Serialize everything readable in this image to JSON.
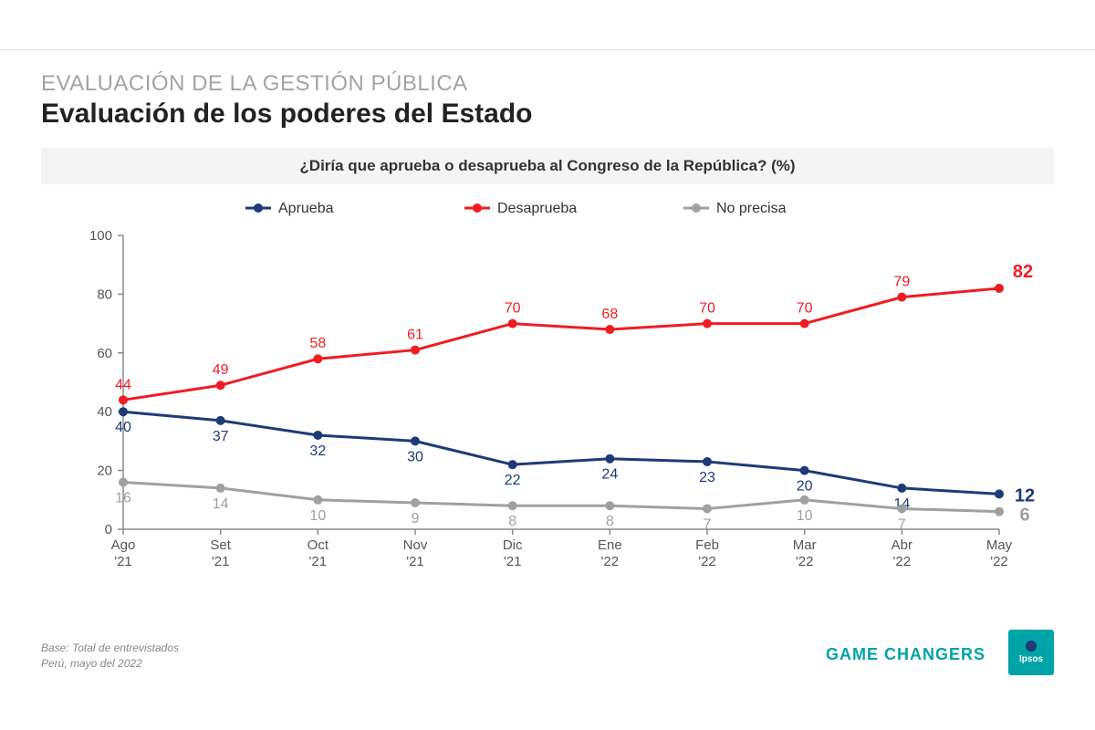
{
  "supertitle": "EVALUACIÓN DE LA GESTIÓN PÚBLICA",
  "title": "Evaluación de los poderes del Estado",
  "question": "¿Diría que aprueba o desaprueba al Congreso de la República? (%)",
  "footer_line1": "Base: Total de entrevistados",
  "footer_line2": "Perú, mayo del 2022",
  "tagline": "GAME CHANGERS",
  "logo_text": "Ipsos",
  "chart": {
    "type": "line",
    "ylim": [
      0,
      100
    ],
    "ytick_step": 20,
    "yticks": [
      0,
      20,
      40,
      60,
      80,
      100
    ],
    "categories_line1": [
      "Ago",
      "Set",
      "Oct",
      "Nov",
      "Dic",
      "Ene",
      "Feb",
      "Mar",
      "Abr",
      "May"
    ],
    "categories_line2": [
      "'21",
      "'21",
      "'21",
      "'21",
      "'21",
      "'22",
      "'22",
      "'22",
      "'22",
      "'22"
    ],
    "axis_color": "#8a8a8a",
    "axis_font_size": 15,
    "legend_font_size": 16,
    "legend_items": [
      {
        "label": "Aprueba",
        "color": "#1e3a77"
      },
      {
        "label": "Desaprueba",
        "color": "#ef1c24"
      },
      {
        "label": "No precisa",
        "color": "#9fa0a0"
      }
    ],
    "series": [
      {
        "name": "Aprueba",
        "color": "#1e3a77",
        "line_width": 3,
        "marker_radius": 5,
        "values": [
          40,
          37,
          32,
          30,
          22,
          24,
          23,
          20,
          14,
          12
        ],
        "label_offsets": [
          [
            0,
            22
          ],
          [
            0,
            22
          ],
          [
            0,
            22
          ],
          [
            0,
            22
          ],
          [
            0,
            22
          ],
          [
            0,
            22
          ],
          [
            0,
            22
          ],
          [
            0,
            22
          ],
          [
            0,
            22
          ],
          [
            28,
            8
          ]
        ],
        "label_font_size": 16,
        "last_bold": true,
        "last_font_size": 20
      },
      {
        "name": "Desaprueba",
        "color": "#ef1c24",
        "line_width": 3,
        "marker_radius": 5,
        "values": [
          44,
          49,
          58,
          61,
          70,
          68,
          70,
          70,
          79,
          82
        ],
        "label_offsets": [
          [
            0,
            -12
          ],
          [
            0,
            -12
          ],
          [
            0,
            -12
          ],
          [
            0,
            -12
          ],
          [
            0,
            -12
          ],
          [
            0,
            -12
          ],
          [
            0,
            -12
          ],
          [
            0,
            -12
          ],
          [
            0,
            -12
          ],
          [
            26,
            -12
          ]
        ],
        "label_font_size": 16,
        "last_bold": true,
        "last_font_size": 20
      },
      {
        "name": "No precisa",
        "color": "#9fa0a0",
        "line_width": 3,
        "marker_radius": 5,
        "values": [
          16,
          14,
          10,
          9,
          8,
          8,
          7,
          10,
          7,
          6
        ],
        "label_offsets": [
          [
            0,
            22
          ],
          [
            0,
            22
          ],
          [
            0,
            22
          ],
          [
            0,
            22
          ],
          [
            0,
            22
          ],
          [
            0,
            22
          ],
          [
            0,
            22
          ],
          [
            0,
            22
          ],
          [
            0,
            22
          ],
          [
            28,
            10
          ]
        ],
        "label_font_size": 16,
        "last_bold": true,
        "last_font_size": 20
      }
    ]
  }
}
